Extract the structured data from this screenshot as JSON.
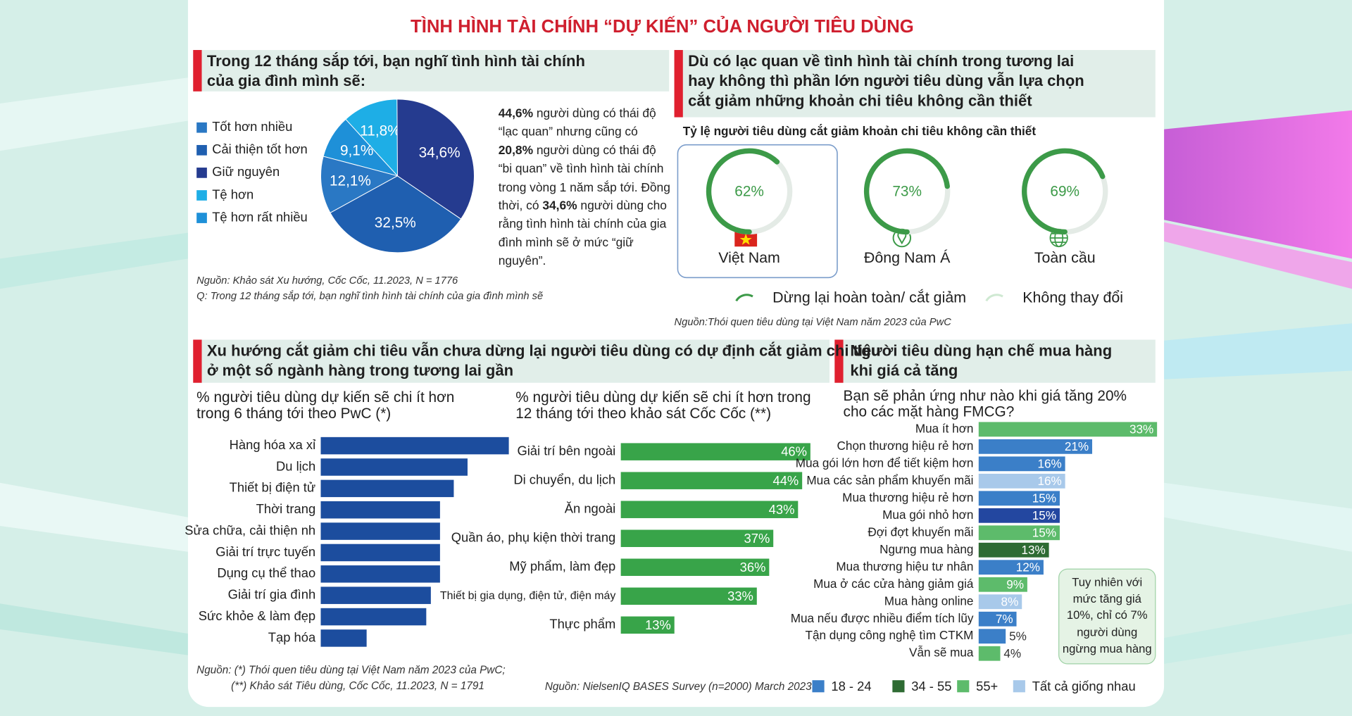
{
  "title": "TÌNH HÌNH TÀI CHÍNH “DỰ KIẾN” CỦA NGƯỜI TIÊU DÙNG",
  "sections": {
    "outlook": {
      "heading": [
        "Trong 12 tháng sắp tới, bạn nghĩ tình hình tài chính",
        "của gia đình mình sẽ:"
      ],
      "paragraph": [
        {
          "text": "44,6%",
          "bold": true
        },
        {
          "text": " người dùng có thái độ “lạc quan” nhưng cũng có "
        },
        {
          "text": "20,8%",
          "bold": true
        },
        {
          "text": " người dùng có thái độ “bi quan” về tình hình tài chính trong vòng 1 năm sắp tới. Đồng thời, có "
        },
        {
          "text": "34,6%",
          "bold": true
        },
        {
          "text": " người dùng cho rằng tình hình tài chính của gia đình mình sẽ ở mức “giữ nguyên”."
        }
      ],
      "source": [
        "Nguồn: Khảo sát Xu hướng, Cốc Cốc, 11.2023, N = 1776",
        "Q: Trong 12 tháng sắp tới, bạn nghĩ tình hình tài chính của gia đình mình sẽ"
      ]
    },
    "cutback": {
      "heading": [
        "Dù có lạc quan về tình hình tài chính trong tương lai",
        "hay không thì phần lớn người tiêu dùng vẫn lựa chọn",
        "cắt giảm những khoản chi tiêu không cần thiết"
      ],
      "source": "Nguồn:Thói quen tiêu dùng tại Việt Nam năm 2023 của PwC"
    },
    "trend": {
      "heading": [
        "Xu hướng cắt giảm chi tiêu vẫn chưa dừng lại người tiêu dùng có dự định cắt giảm chi tiêu",
        "ở một số ngành hàng trong tương lai gần"
      ],
      "source": [
        "Nguồn: (*) Thói quen tiêu dùng tại Việt Nam năm 2023 của PwC;",
        "(**) Khảo sát Tiêu dùng, Cốc Cốc, 11.2023, N = 1791"
      ]
    },
    "limit": {
      "heading": [
        "Người tiêu dùng hạn chế mua hàng",
        "khi giá cả tăng"
      ],
      "source": "Nguồn: NielsenIQ BASES Survey (n=2000) March 2023"
    }
  },
  "chart_data": [
    {
      "type": "pie",
      "categories": [
        "Tốt hơn nhiều",
        "Cải thiện tốt hơn",
        "Giữ nguyên",
        "Tệ hơn",
        "Tệ hơn rất nhiều"
      ],
      "values": [
        12.1,
        32.5,
        34.6,
        11.8,
        9.1
      ],
      "value_labels": [
        "12,1%",
        "32,5%",
        "34,6%",
        "11,8%",
        "9,1%"
      ],
      "colors": [
        "#2a78c4",
        "#1f5fb0",
        "#253b8f",
        "#1eaee6",
        "#1e90d8"
      ]
    },
    {
      "type": "gauge",
      "title": "Tỷ lệ người tiêu dùng cắt giảm khoản chi tiêu không cần thiết",
      "categories": [
        "Việt Nam",
        "Đông Nam Á",
        "Toàn cầu"
      ],
      "values": [
        62,
        73,
        69
      ],
      "value_labels": [
        "62%",
        "73%",
        "69%"
      ],
      "legend": [
        {
          "name": "Dừng lại hoàn toàn/ cắt giảm",
          "color": "#3c9a48"
        },
        {
          "name": "Không thay đổi",
          "color": "#e4ebe6"
        }
      ]
    },
    {
      "type": "hbar",
      "title": [
        "% người tiêu dùng dự kiến sẽ chi ít hơn",
        " trong 6 tháng tới theo PwC (*)"
      ],
      "categories": [
        "Hàng hóa xa xỉ",
        "Du lịch",
        "Thiết bị điện tử",
        "Thời trang",
        "Sửa chữa, cải thiện nh",
        "Giải trí trực tuyến",
        "Dụng cụ thể thao",
        "Giải trí gia đình",
        "Sức khỏe & làm đẹp",
        "Tạp hóa"
      ],
      "values": [
        41,
        32,
        29,
        26,
        26,
        26,
        26,
        24,
        23,
        10
      ],
      "color": "#1c4d9e"
    },
    {
      "type": "hbar",
      "title": [
        "% người tiêu dùng dự kiến sẽ chi ít hơn trong",
        "12 tháng tới theo khảo sát Cốc Cốc (**)"
      ],
      "categories": [
        "Giải trí bên ngoài",
        "Di chuyển, du lịch",
        "Ăn ngoài",
        "Quần áo, phụ kiện thời trang",
        "Mỹ phẩm, làm đẹp",
        "Thiết bị gia dụng, điện tử, điện máy",
        "Thực phẩm"
      ],
      "values": [
        46,
        44,
        43,
        37,
        36,
        33,
        13
      ],
      "value_labels": [
        "46%",
        "44%",
        "43%",
        "37%",
        "36%",
        "33%",
        "13%"
      ],
      "color": "#38a449"
    },
    {
      "type": "hbar",
      "title": [
        "Bạn sẽ phản ứng như nào khi giá tăng 20%",
        "cho các mặt hàng FMCG?"
      ],
      "categories": [
        "Mua ít hơn",
        "Chọn thương hiệu rẻ hơn",
        "Mua gói lớn hơn để tiết kiệm hơn",
        "Mua các sản phẩm khuyến mãi",
        "Mua thương hiệu rẻ hơn",
        "Mua gói nhỏ hơn",
        "Đợi đợt khuyến mãi",
        "Ngưng mua hàng",
        "Mua thương hiệu tư nhân",
        "Mua ở các cửa hàng giảm giá",
        "Mua hàng online",
        "Mua nếu được nhiều điểm tích lũy",
        "Tận dụng công nghệ tìm CTKM",
        "Vẫn sẽ mua"
      ],
      "values": [
        33,
        21,
        16,
        16,
        15,
        15,
        15,
        13,
        12,
        9,
        8,
        7,
        5,
        4
      ],
      "value_labels": [
        "33%",
        "21%",
        "16%",
        "16%",
        "15%",
        "15%",
        "15%",
        "13%",
        "12%",
        "9%",
        "8%",
        "7%",
        "5%",
        "4%"
      ],
      "colors": [
        "#5dbb6b",
        "#3b7fc8",
        "#3b7fc8",
        "#a8c9ea",
        "#3b7fc8",
        "#2347a0",
        "#5dbb6b",
        "#2e6b33",
        "#3b7fc8",
        "#5dbb6b",
        "#a8c9ea",
        "#3b7fc8",
        "#3b7fc8",
        "#5dbb6b"
      ],
      "legend": [
        {
          "name": "18 - 24",
          "color": "#3b7fc8"
        },
        {
          "name": "34 - 55",
          "color": "#2e6b33"
        },
        {
          "name": "55+",
          "color": "#5dbb6b"
        },
        {
          "name": "Tất cả giống nhau",
          "color": "#a8c9ea"
        }
      ],
      "annotation": "Tuy nhiên với mức tăng giá 10%, chỉ có 7% người dùng ngừng mua hàng"
    }
  ]
}
